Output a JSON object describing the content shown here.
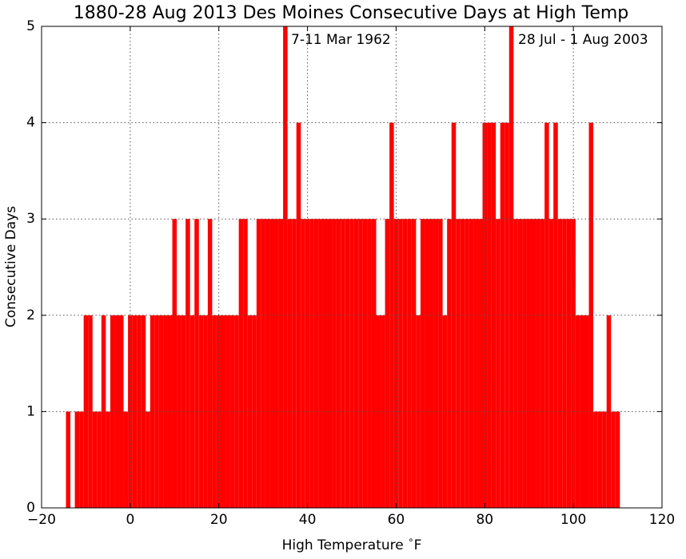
{
  "chart_data": {
    "type": "bar",
    "title": "1880-28 Aug 2013 Des Moines Consecutive Days at High Temp",
    "x_label": "High Temperature $^\\circ$F",
    "y_label": "Consecutive Days",
    "annotations": [
      "7-11 Mar 1962",
      "28 Jul - 1 Aug 2003"
    ],
    "color": "#ff0000",
    "grid": true,
    "x": [
      -14,
      -13,
      -12,
      -11,
      -10,
      -9,
      -8,
      -7,
      -6,
      -5,
      -4,
      -3,
      -2,
      -1,
      0,
      1,
      2,
      3,
      4,
      5,
      6,
      7,
      8,
      9,
      10,
      11,
      12,
      13,
      14,
      15,
      16,
      17,
      18,
      19,
      20,
      21,
      22,
      23,
      24,
      25,
      26,
      27,
      28,
      29,
      30,
      31,
      32,
      33,
      34,
      35,
      36,
      37,
      38,
      39,
      40,
      41,
      42,
      43,
      44,
      45,
      46,
      47,
      48,
      49,
      50,
      51,
      52,
      53,
      54,
      55,
      56,
      57,
      58,
      59,
      60,
      61,
      62,
      63,
      64,
      65,
      66,
      67,
      68,
      69,
      70,
      71,
      72,
      73,
      74,
      75,
      76,
      77,
      78,
      79,
      80,
      81,
      82,
      83,
      84,
      85,
      86,
      87,
      88,
      89,
      90,
      91,
      92,
      93,
      94,
      95,
      96,
      97,
      98,
      99,
      100,
      101,
      102,
      103,
      104,
      105,
      106,
      107,
      108,
      109,
      110
    ],
    "values": [
      1,
      0,
      1,
      1,
      2,
      2,
      1,
      1,
      2,
      1,
      2,
      2,
      2,
      1,
      2,
      2,
      2,
      2,
      1,
      2,
      2,
      2,
      2,
      2,
      3,
      2,
      2,
      3,
      2,
      3,
      2,
      2,
      3,
      2,
      2,
      2,
      2,
      2,
      2,
      3,
      3,
      2,
      2,
      3,
      3,
      3,
      3,
      3,
      3,
      5,
      3,
      3,
      4,
      3,
      3,
      3,
      3,
      3,
      3,
      3,
      3,
      3,
      3,
      3,
      3,
      3,
      3,
      3,
      3,
      3,
      2,
      2,
      3,
      4,
      3,
      3,
      3,
      3,
      3,
      2,
      3,
      3,
      3,
      3,
      3,
      2,
      3,
      4,
      3,
      3,
      3,
      3,
      3,
      3,
      4,
      4,
      4,
      3,
      4,
      4,
      5,
      3,
      3,
      3,
      3,
      3,
      3,
      3,
      4,
      3,
      4,
      3,
      3,
      3,
      3,
      2,
      2,
      2,
      4,
      1,
      1,
      1,
      2,
      1,
      1
    ],
    "xlim": [
      -20,
      120
    ],
    "xticks": [
      {
        "value": -20,
        "label": "−20"
      },
      0,
      20,
      40,
      60,
      80,
      100,
      120
    ],
    "ylim": [
      0,
      5
    ],
    "yticks": [
      0,
      1,
      2,
      3,
      4,
      5
    ]
  }
}
